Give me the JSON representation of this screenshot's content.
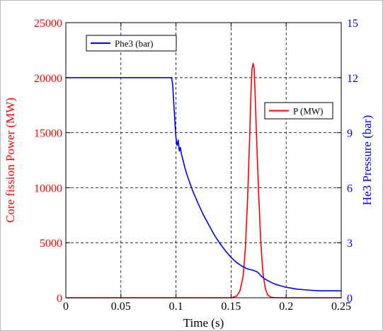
{
  "chart_data": {
    "type": "line",
    "xlabel": "Time (s)",
    "ylabel_left": "Core fission Power (MW)",
    "ylabel_right": "He3 Pressure (bar)",
    "xlim": [
      0,
      0.25
    ],
    "ylim_left": [
      0,
      25000
    ],
    "ylim_right": [
      0,
      15
    ],
    "x_ticks": [
      "0",
      "0.05",
      "0.1",
      "0.15",
      "0.2",
      "0.25"
    ],
    "y_left_ticks": [
      "0",
      "5000",
      "10000",
      "15000",
      "20000",
      "25000"
    ],
    "y_right_ticks": [
      "0",
      "3",
      "6",
      "9",
      "12",
      "15"
    ],
    "grid": true,
    "colors": {
      "left_axis": "#ff0000",
      "right_axis": "#0000ff",
      "grid": "#000000"
    },
    "legends": [
      {
        "label": "Phe3 (bar)",
        "color": "#0000ff",
        "placement": "top-left"
      },
      {
        "label": "P (MW)",
        "color": "#ff0000",
        "placement": "top-right"
      }
    ],
    "series": [
      {
        "name": "P (MW)",
        "axis": "left",
        "color": "#ff0000",
        "x": [
          0,
          0.15,
          0.155,
          0.158,
          0.161,
          0.163,
          0.165,
          0.167,
          0.168,
          0.169,
          0.17,
          0.171,
          0.172,
          0.173,
          0.175,
          0.177,
          0.179,
          0.181,
          0.183,
          0.186,
          0.19,
          0.25
        ],
        "y": [
          0,
          0,
          150,
          600,
          2000,
          4500,
          9000,
          15000,
          18500,
          20800,
          21300,
          20800,
          18000,
          15000,
          9500,
          5000,
          2200,
          900,
          300,
          60,
          0,
          0
        ]
      },
      {
        "name": "Phe3 (bar)",
        "axis": "right",
        "color": "#0000ff",
        "x": [
          0,
          0.096,
          0.097,
          0.098,
          0.099,
          0.1,
          0.101,
          0.102,
          0.103,
          0.104,
          0.105,
          0.106,
          0.108,
          0.11,
          0.115,
          0.12,
          0.125,
          0.13,
          0.135,
          0.14,
          0.145,
          0.15,
          0.155,
          0.16,
          0.165,
          0.17,
          0.173,
          0.175,
          0.177,
          0.18,
          0.185,
          0.19,
          0.195,
          0.2,
          0.21,
          0.22,
          0.23,
          0.25
        ],
        "y": [
          12,
          12,
          11.6,
          10.6,
          9.6,
          8.7,
          8.3,
          8.6,
          8.0,
          8.2,
          7.8,
          7.6,
          7.1,
          6.7,
          5.85,
          5.15,
          4.5,
          3.95,
          3.4,
          2.95,
          2.55,
          2.2,
          1.92,
          1.72,
          1.57,
          1.5,
          1.43,
          1.35,
          1.2,
          1.05,
          0.88,
          0.74,
          0.65,
          0.57,
          0.47,
          0.42,
          0.38,
          0.38
        ]
      }
    ]
  }
}
